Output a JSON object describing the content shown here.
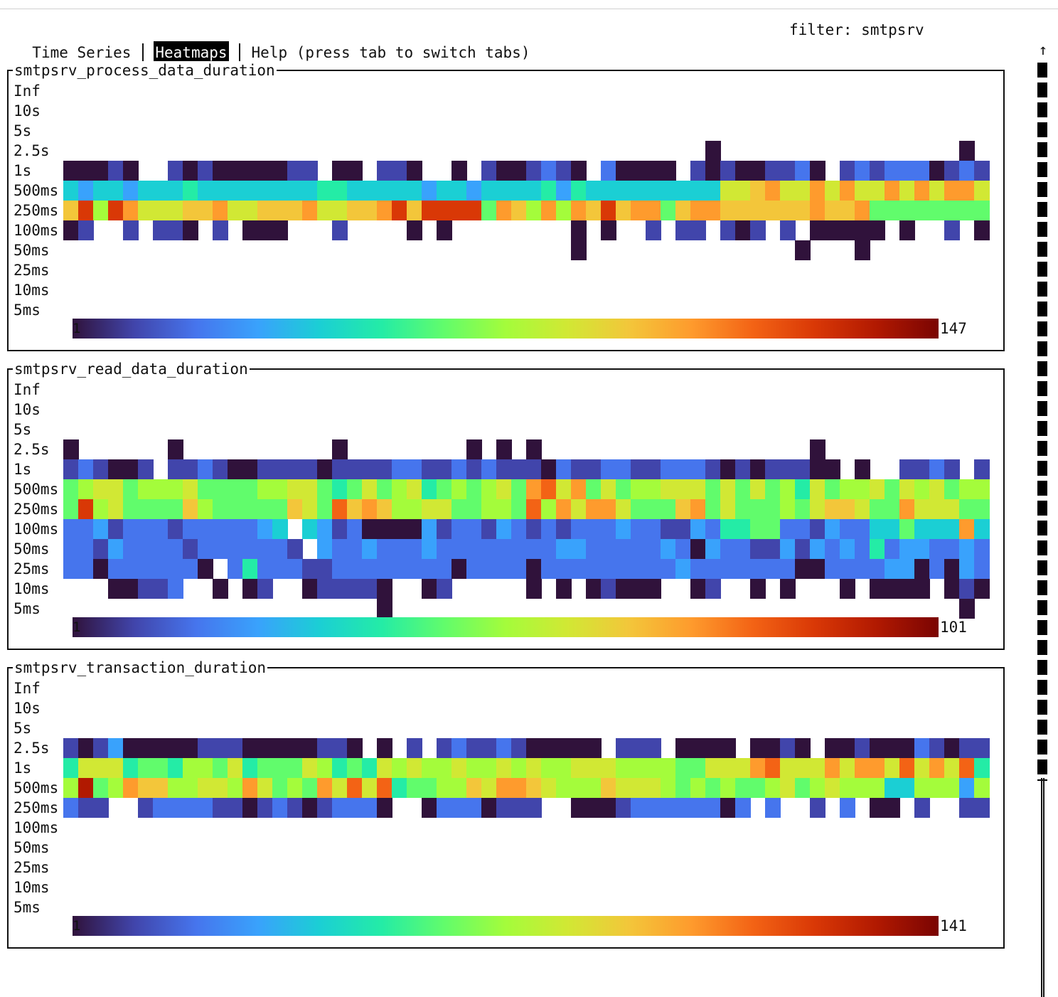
{
  "tabs": [
    {
      "label": "Time Series",
      "active": false
    },
    {
      "label": "Heatmaps",
      "active": true
    },
    {
      "label": "Help (press tab to switch tabs)",
      "active": false
    }
  ],
  "filter": {
    "label": "filter:",
    "value": "smtpsrv"
  },
  "scrollbar": {
    "up_arrow": "↑"
  },
  "y_buckets": [
    "Inf",
    "10s",
    "5s",
    "2.5s",
    "1s",
    "500ms",
    "250ms",
    "100ms",
    "50ms",
    "25ms",
    "10ms",
    "5ms"
  ],
  "columns": 62,
  "colormap": [
    "#30123b",
    "#4145ab",
    "#4675ed",
    "#39a2fc",
    "#1bcfd4",
    "#24eca6",
    "#61fc6c",
    "#a4fc3b",
    "#d1e834",
    "#f3c63a",
    "#fe9b2d",
    "#f36315",
    "#d93806",
    "#b11901",
    "#7a0402"
  ],
  "heatmaps": [
    {
      "title": "smtpsrv_process_data_duration",
      "scale_min": "1",
      "scale_max": "147",
      "rows": {
        "2.5s": "-------------------------------------------0----------------0--",
        "1s": "00010--1010000011-00-110--0-1001210-20000-101001120-12122201212232",
        "500ms": "43443444544444444554444434434444535444444444889a88a8a88a8a8aa8a8",
        "250ms": "9c7ca88899a88999a8899ac9cccc6a97a7a9c9aa69aa999999a99a666666666656",
        "100ms": "01--1-110-1-000---1----0-0--------0-0--1-11-101-1-00000-0--1-000--",
        "50ms": "----------------------------------0--------------0---0-------",
        "25ms": "",
        "10ms": "",
        "5ms": ""
      }
    },
    {
      "title": "smtpsrv_read_data_duration",
      "scale_min": "1",
      "scale_max": "101",
      "rows": {
        "2.5s": "0------0----------0--------0-0-0------------------0--------------",
        "1s": "121001-112100111101111221121211102112211222101011100-0--1121-101110",
        "500ms": "6788677786666778865686785676786ab8a686778886868675867786878677687",
        "250ms": "6c7866669766666986b9a9778866776b7a8aa86669a6866676899866a88866896",
        "100ms": "223122212222234-43120000312213212122232211325566221322446444a4242",
        "50ms": "2213222212222221-32232223222222223322222320322113132325233223243",
        "25ms": "2202222220-252221122222222022220222222222322222220022223302032022",
        "10ms": "---00112--0-01--011110--01-----0-0-01000--01--0-0---0-0000-0101---2-00",
        "5ms": "---------------------0--------------------------------------0----"
      }
    },
    {
      "title": "smtpsrv_transaction_duration",
      "scale_min": "1",
      "scale_max": "141",
      "rows": {
        "2.5s": "10130000011100000110-0-1-12112100000-111-0000-0010-001000210111100",
        "1s": "5888566577685666875658787787787877888777766888ab888a8aa8b8a8b5a8aa",
        "500ms": "7d67a9977887a8676a8b8b5667798aa98777988876767667867877744777377777",
        "250ms": "211--12222110121012220--02220111--000122222202-2--1-2-00-1--1110----2-1",
        "100ms": "",
        "50ms": "",
        "25ms": "",
        "10ms": "",
        "5ms": ""
      }
    }
  ]
}
